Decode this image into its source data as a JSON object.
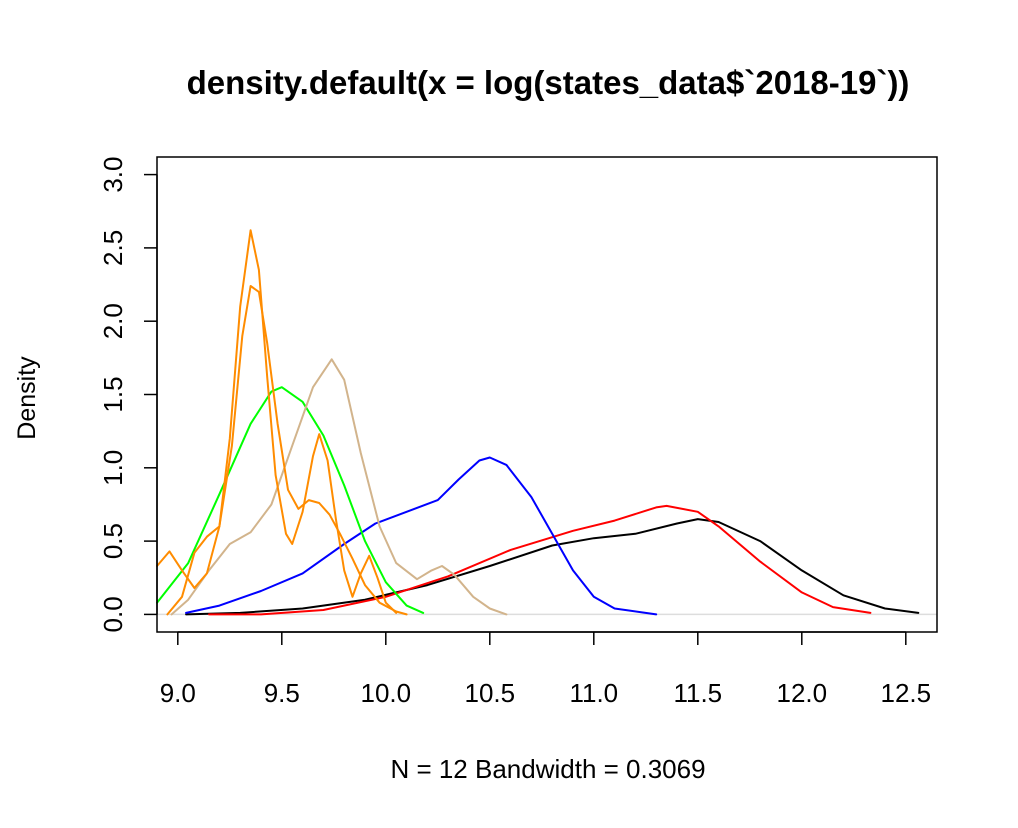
{
  "chart_data": {
    "type": "line",
    "title": "density.default(x = log(states_data$`2018-19`))",
    "xlabel": "N = 12   Bandwidth = 0.3069",
    "ylabel": "Density",
    "xlim": [
      8.9,
      12.65
    ],
    "ylim": [
      -0.12,
      3.12
    ],
    "x_ticks": [
      9.0,
      9.5,
      10.0,
      10.5,
      11.0,
      11.5,
      12.0,
      12.5
    ],
    "x_tick_labels": [
      "9.0",
      "9.5",
      "10.0",
      "10.5",
      "11.0",
      "11.5",
      "12.0",
      "12.5"
    ],
    "y_ticks": [
      0.0,
      0.5,
      1.0,
      1.5,
      2.0,
      2.5,
      3.0
    ],
    "y_tick_labels": [
      "0.0",
      "0.5",
      "1.0",
      "1.5",
      "2.0",
      "2.5",
      "3.0"
    ],
    "zero_line_color": "#dddddd",
    "series": [
      {
        "color": "#000000",
        "points": [
          [
            9.04,
            0.0
          ],
          [
            9.3,
            0.01
          ],
          [
            9.6,
            0.04
          ],
          [
            9.9,
            0.1
          ],
          [
            10.2,
            0.2
          ],
          [
            10.5,
            0.33
          ],
          [
            10.8,
            0.47
          ],
          [
            11.0,
            0.52
          ],
          [
            11.2,
            0.55
          ],
          [
            11.4,
            0.62
          ],
          [
            11.5,
            0.65
          ],
          [
            11.6,
            0.63
          ],
          [
            11.8,
            0.5
          ],
          [
            12.0,
            0.3
          ],
          [
            12.2,
            0.13
          ],
          [
            12.4,
            0.04
          ],
          [
            12.56,
            0.01
          ]
        ]
      },
      {
        "color": "#ff0000",
        "points": [
          [
            9.15,
            0.0
          ],
          [
            9.4,
            0.0
          ],
          [
            9.7,
            0.03
          ],
          [
            10.0,
            0.12
          ],
          [
            10.3,
            0.26
          ],
          [
            10.6,
            0.44
          ],
          [
            10.9,
            0.57
          ],
          [
            11.1,
            0.64
          ],
          [
            11.3,
            0.73
          ],
          [
            11.35,
            0.74
          ],
          [
            11.5,
            0.7
          ],
          [
            11.6,
            0.6
          ],
          [
            11.8,
            0.36
          ],
          [
            12.0,
            0.15
          ],
          [
            12.15,
            0.05
          ],
          [
            12.33,
            0.01
          ]
        ]
      },
      {
        "color": "#0000ff",
        "points": [
          [
            9.04,
            0.01
          ],
          [
            9.2,
            0.06
          ],
          [
            9.4,
            0.16
          ],
          [
            9.6,
            0.28
          ],
          [
            9.8,
            0.48
          ],
          [
            9.95,
            0.62
          ],
          [
            10.1,
            0.7
          ],
          [
            10.25,
            0.78
          ],
          [
            10.35,
            0.92
          ],
          [
            10.45,
            1.05
          ],
          [
            10.5,
            1.07
          ],
          [
            10.58,
            1.02
          ],
          [
            10.7,
            0.8
          ],
          [
            10.8,
            0.55
          ],
          [
            10.9,
            0.3
          ],
          [
            11.0,
            0.12
          ],
          [
            11.1,
            0.04
          ],
          [
            11.3,
            0.0
          ]
        ]
      },
      {
        "color": "#00ff00",
        "points": [
          [
            8.9,
            0.08
          ],
          [
            9.05,
            0.35
          ],
          [
            9.2,
            0.82
          ],
          [
            9.35,
            1.3
          ],
          [
            9.45,
            1.52
          ],
          [
            9.5,
            1.55
          ],
          [
            9.6,
            1.45
          ],
          [
            9.7,
            1.22
          ],
          [
            9.8,
            0.88
          ],
          [
            9.9,
            0.5
          ],
          [
            10.0,
            0.22
          ],
          [
            10.1,
            0.06
          ],
          [
            10.18,
            0.01
          ]
        ]
      },
      {
        "color": "#d2b48c",
        "points": [
          [
            8.97,
            0.0
          ],
          [
            9.05,
            0.1
          ],
          [
            9.15,
            0.3
          ],
          [
            9.25,
            0.48
          ],
          [
            9.35,
            0.56
          ],
          [
            9.45,
            0.75
          ],
          [
            9.55,
            1.15
          ],
          [
            9.65,
            1.55
          ],
          [
            9.74,
            1.74
          ],
          [
            9.8,
            1.6
          ],
          [
            9.88,
            1.1
          ],
          [
            9.97,
            0.6
          ],
          [
            10.05,
            0.35
          ],
          [
            10.15,
            0.24
          ],
          [
            10.22,
            0.3
          ],
          [
            10.27,
            0.33
          ],
          [
            10.33,
            0.27
          ],
          [
            10.42,
            0.12
          ],
          [
            10.5,
            0.04
          ],
          [
            10.58,
            0.0
          ]
        ]
      },
      {
        "color": "#ff8c00",
        "points": [
          [
            8.9,
            0.33
          ],
          [
            8.96,
            0.43
          ],
          [
            9.02,
            0.3
          ],
          [
            9.08,
            0.18
          ],
          [
            9.14,
            0.28
          ],
          [
            9.2,
            0.6
          ],
          [
            9.26,
            1.15
          ],
          [
            9.31,
            1.9
          ],
          [
            9.35,
            2.24
          ],
          [
            9.39,
            2.2
          ],
          [
            9.43,
            1.85
          ],
          [
            9.48,
            1.3
          ],
          [
            9.53,
            0.85
          ],
          [
            9.58,
            0.72
          ],
          [
            9.63,
            0.78
          ],
          [
            9.68,
            0.76
          ],
          [
            9.73,
            0.68
          ],
          [
            9.78,
            0.55
          ],
          [
            9.84,
            0.38
          ],
          [
            9.9,
            0.2
          ],
          [
            9.97,
            0.08
          ],
          [
            10.05,
            0.02
          ],
          [
            10.1,
            0.0
          ]
        ]
      },
      {
        "color": "#ff8c00",
        "points": [
          [
            8.95,
            0.0
          ],
          [
            9.02,
            0.12
          ],
          [
            9.08,
            0.42
          ],
          [
            9.14,
            0.53
          ],
          [
            9.2,
            0.6
          ],
          [
            9.25,
            1.2
          ],
          [
            9.3,
            2.1
          ],
          [
            9.35,
            2.62
          ],
          [
            9.39,
            2.35
          ],
          [
            9.43,
            1.62
          ],
          [
            9.47,
            0.95
          ],
          [
            9.52,
            0.55
          ],
          [
            9.55,
            0.48
          ],
          [
            9.6,
            0.7
          ],
          [
            9.65,
            1.08
          ],
          [
            9.68,
            1.23
          ],
          [
            9.72,
            1.05
          ],
          [
            9.76,
            0.65
          ],
          [
            9.8,
            0.3
          ],
          [
            9.84,
            0.12
          ],
          [
            9.88,
            0.28
          ],
          [
            9.92,
            0.4
          ],
          [
            9.96,
            0.25
          ],
          [
            10.0,
            0.08
          ],
          [
            10.05,
            0.01
          ]
        ]
      }
    ]
  }
}
